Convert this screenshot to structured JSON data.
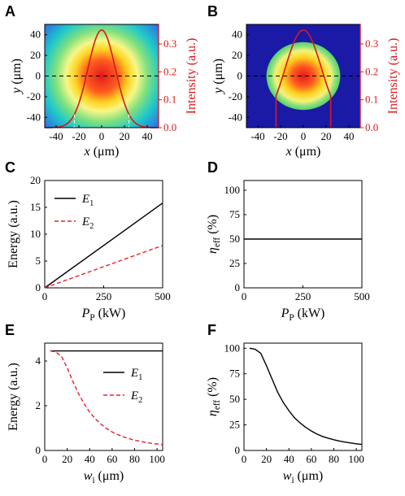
{
  "colors": {
    "black": "#000000",
    "red": "#d7191c",
    "bg_blue": "#1a1aa6",
    "dashed_red": "#e8202a"
  },
  "chart_data": [
    {
      "panel": "A",
      "type": "heatmap",
      "description_kind": "gaussian-beam-profile",
      "xlabel": "x (μm)",
      "ylabel": "y (μm)",
      "ylabel_right": "Intensity (a.u.)",
      "xlim": [
        -50,
        50
      ],
      "ylim": [
        -50,
        50
      ],
      "ylim_right": [
        0,
        0.37
      ],
      "xticks": [
        "-40",
        "-20",
        "0",
        "20",
        "40"
      ],
      "yticks": [
        "-40",
        "-20",
        "0",
        "20",
        "40"
      ],
      "yticks_right": [
        "0.0",
        "0.1",
        "0.2",
        "0.3"
      ],
      "beam_radius_um": 24,
      "peak_intensity": 0.35,
      "marker_x_um": [
        -24,
        24
      ]
    },
    {
      "panel": "B",
      "type": "heatmap",
      "description_kind": "flat-top-aperture-profile",
      "xlabel": "x (μm)",
      "ylabel": "y (μm)",
      "ylabel_right": "Intensity (a.u.)",
      "xlim": [
        -50,
        50
      ],
      "ylim": [
        -50,
        50
      ],
      "ylim_right": [
        0,
        0.37
      ],
      "xticks": [
        "-40",
        "-20",
        "0",
        "20",
        "40"
      ],
      "yticks": [
        "-40",
        "-20",
        "0",
        "20",
        "40"
      ],
      "yticks_right": [
        "0.0",
        "0.1",
        "0.2",
        "0.3"
      ],
      "aperture_radius_um": 24,
      "peak_intensity": 0.35
    },
    {
      "panel": "C",
      "type": "line",
      "xlabel_main": "P",
      "xlabel_sub": "P",
      "xlabel_unit": "(kW)",
      "ylabel": "Energy (a.u.)",
      "xlim": [
        0,
        500
      ],
      "ylim": [
        0,
        20
      ],
      "xticks": [
        "0",
        "250",
        "500"
      ],
      "yticks": [
        "0",
        "5",
        "10",
        "15",
        "20"
      ],
      "legend": [
        {
          "main": "E",
          "sub": "1",
          "style": "solid"
        },
        {
          "main": "E",
          "sub": "2",
          "style": "dashed"
        }
      ],
      "series": [
        {
          "name": "E1",
          "x": [
            0,
            500
          ],
          "y": [
            0,
            15.8
          ]
        },
        {
          "name": "E2",
          "x": [
            0,
            500
          ],
          "y": [
            0,
            7.9
          ]
        }
      ]
    },
    {
      "panel": "D",
      "type": "line",
      "xlabel_main": "P",
      "xlabel_sub": "P",
      "xlabel_unit": "(kW)",
      "ylabel_main": "η",
      "ylabel_sub": "eff",
      "ylabel_unit": "(%)",
      "xlim": [
        0,
        500
      ],
      "ylim": [
        0,
        110
      ],
      "xticks": [
        "0",
        "250",
        "500"
      ],
      "yticks": [
        "0",
        "25",
        "50",
        "75",
        "100"
      ],
      "series": [
        {
          "name": "eta",
          "x": [
            0,
            500
          ],
          "y": [
            50,
            50
          ]
        }
      ]
    },
    {
      "panel": "E",
      "type": "line",
      "xlabel_main": "w",
      "xlabel_sub": "i",
      "xlabel_unit": "(μm)",
      "ylabel": "Energy (a.u.)",
      "xlim": [
        0,
        105
      ],
      "ylim": [
        0,
        4.8
      ],
      "xticks": [
        "0",
        "20",
        "40",
        "60",
        "80",
        "100"
      ],
      "yticks": [
        "0",
        "2",
        "4"
      ],
      "legend": [
        {
          "main": "E",
          "sub": "1",
          "style": "solid"
        },
        {
          "main": "E",
          "sub": "2",
          "style": "dashed"
        }
      ],
      "series": [
        {
          "name": "E1",
          "x": [
            5,
            105
          ],
          "y": [
            4.45,
            4.45
          ]
        },
        {
          "name": "E2",
          "x": [
            5,
            10,
            15,
            20,
            25,
            30,
            35,
            40,
            45,
            50,
            55,
            60,
            65,
            70,
            75,
            80,
            85,
            90,
            95,
            100,
            105
          ],
          "y": [
            4.45,
            4.4,
            4.2,
            3.7,
            3.1,
            2.55,
            2.1,
            1.72,
            1.42,
            1.18,
            0.98,
            0.83,
            0.71,
            0.61,
            0.53,
            0.46,
            0.41,
            0.36,
            0.32,
            0.29,
            0.26
          ]
        }
      ]
    },
    {
      "panel": "F",
      "type": "line",
      "xlabel_main": "w",
      "xlabel_sub": "i",
      "xlabel_unit": "(μm)",
      "ylabel_main": "η",
      "ylabel_sub": "eff",
      "ylabel_unit": "(%)",
      "xlim": [
        0,
        105
      ],
      "ylim": [
        0,
        105
      ],
      "xticks": [
        "0",
        "20",
        "40",
        "60",
        "80",
        "100"
      ],
      "yticks": [
        "0",
        "25",
        "50",
        "75",
        "100"
      ],
      "series": [
        {
          "name": "eta",
          "x": [
            5,
            10,
            15,
            20,
            25,
            30,
            35,
            40,
            45,
            50,
            55,
            60,
            65,
            70,
            75,
            80,
            85,
            90,
            95,
            100,
            105
          ],
          "y": [
            100,
            99,
            95,
            83,
            70,
            57,
            47,
            39,
            32,
            27,
            22.5,
            19,
            16,
            13.7,
            12,
            10.5,
            9.2,
            8.2,
            7.3,
            6.5,
            5.9
          ]
        }
      ]
    }
  ]
}
